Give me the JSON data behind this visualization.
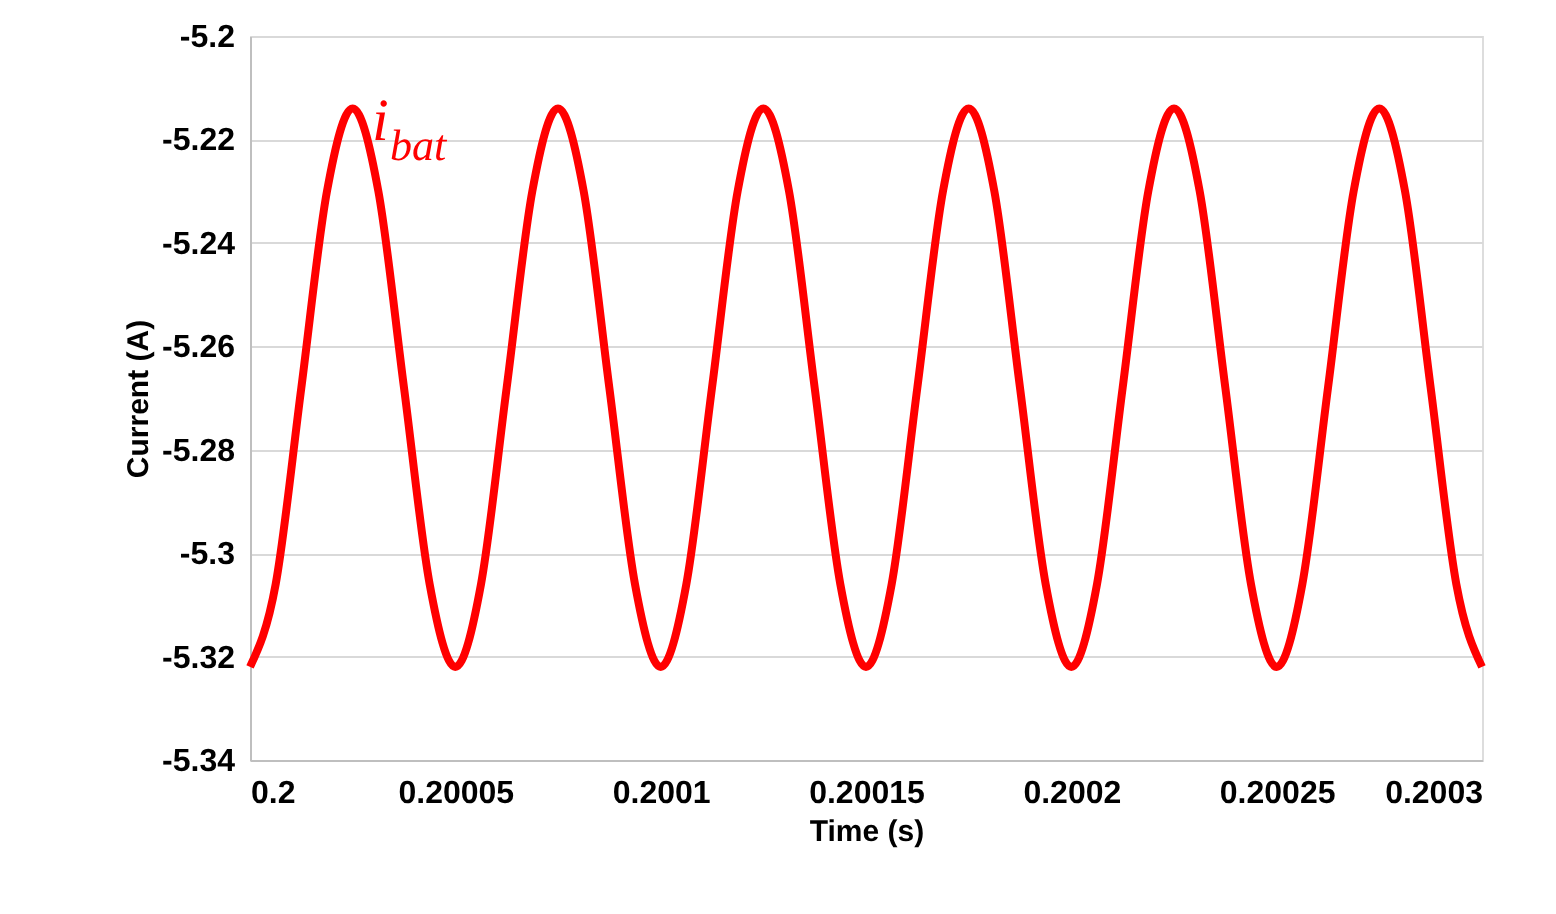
{
  "chart_data": {
    "type": "line",
    "xlabel": "Time (s)",
    "ylabel": "Current (A)",
    "x": [
      0.2,
      0.20000625,
      0.2000125,
      0.20001875,
      0.200025,
      0.20003125,
      0.2000375,
      0.20004375,
      0.20005,
      0.20005625,
      0.2000625,
      0.20006875,
      0.200075,
      0.20008125,
      0.2000875,
      0.20009375,
      0.2001,
      0.20010625,
      0.2001125,
      0.20011875,
      0.200125,
      0.20013125,
      0.2001375,
      0.20014375,
      0.20015,
      0.20015625,
      0.2001625,
      0.20016875,
      0.200175,
      0.20018125,
      0.2001875,
      0.20019375,
      0.2002,
      0.20020625,
      0.2002125,
      0.20021875,
      0.200225,
      0.20023125,
      0.2002375,
      0.20024375,
      0.20025,
      0.20025625,
      0.2002625,
      0.20026875,
      0.200275,
      0.20028125,
      0.2002875,
      0.20029375,
      0.2003
    ],
    "series": [
      {
        "name": "i$_{bat}$",
        "color": "#ff0000",
        "values": [
          -5.322,
          -5.306,
          -5.268,
          -5.23,
          -5.214,
          -5.23,
          -5.268,
          -5.306,
          -5.322,
          -5.306,
          -5.268,
          -5.23,
          -5.214,
          -5.23,
          -5.268,
          -5.306,
          -5.322,
          -5.306,
          -5.268,
          -5.23,
          -5.214,
          -5.23,
          -5.268,
          -5.306,
          -5.322,
          -5.306,
          -5.268,
          -5.23,
          -5.214,
          -5.23,
          -5.268,
          -5.306,
          -5.322,
          -5.306,
          -5.268,
          -5.23,
          -5.214,
          -5.23,
          -5.268,
          -5.306,
          -5.322,
          -5.306,
          -5.268,
          -5.23,
          -5.214,
          -5.23,
          -5.268,
          -5.306,
          -5.322
        ]
      }
    ],
    "xlim": [
      0.2,
      0.2003
    ],
    "xticks": [
      0.2,
      0.20005,
      0.2001,
      0.20015,
      0.2002,
      0.20025,
      0.2003
    ],
    "ylim": [
      -5.34,
      -5.2
    ],
    "yticks": [
      -5.34,
      -5.32,
      -5.3,
      -5.28,
      -5.26,
      -5.24,
      -5.22,
      -5.2
    ],
    "grid": "y",
    "marker": "none",
    "line_style": "solid"
  }
}
